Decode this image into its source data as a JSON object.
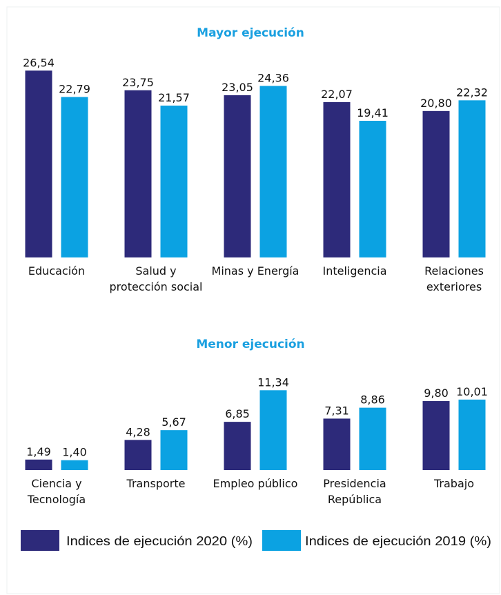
{
  "chart_data": [
    {
      "type": "bar",
      "title": "Mayor ejecución",
      "categories": [
        "Educación",
        "Salud y protección social",
        "Minas y Energía",
        "Inteligencia",
        "Relaciones exteriores"
      ],
      "series": [
        {
          "name": "Indices de ejecución 2020 (%)",
          "color": "#2d2a7a",
          "values": [
            26.54,
            23.75,
            23.05,
            22.07,
            20.8
          ],
          "value_labels": [
            "26,54",
            "23,75",
            "23,05",
            "22,07",
            "20,80"
          ]
        },
        {
          "name": "Indices de ejecución 2019 (%)",
          "color": "#0ba2e2",
          "values": [
            22.79,
            21.57,
            24.36,
            19.41,
            22.32
          ],
          "value_labels": [
            "22,79",
            "21,57",
            "24,36",
            "19,41",
            "22,32"
          ]
        }
      ]
    },
    {
      "type": "bar",
      "title": "Menor ejecución",
      "categories": [
        "Ciencia y Tecnología",
        "Transporte",
        "Empleo público",
        "Presidencia República",
        "Trabajo"
      ],
      "series": [
        {
          "name": "Indices de ejecución 2020 (%)",
          "color": "#2d2a7a",
          "values": [
            1.49,
            4.28,
            6.85,
            7.31,
            9.8
          ],
          "value_labels": [
            "1,49",
            "4,28",
            "6,85",
            "7,31",
            "9,80"
          ]
        },
        {
          "name": "Indices de ejecución 2019 (%)",
          "color": "#0ba2e2",
          "values": [
            1.4,
            5.67,
            11.34,
            8.86,
            10.01
          ],
          "value_labels": [
            "1,40",
            "5,67",
            "11,34",
            "8,86",
            "10,01"
          ]
        }
      ]
    }
  ]
}
